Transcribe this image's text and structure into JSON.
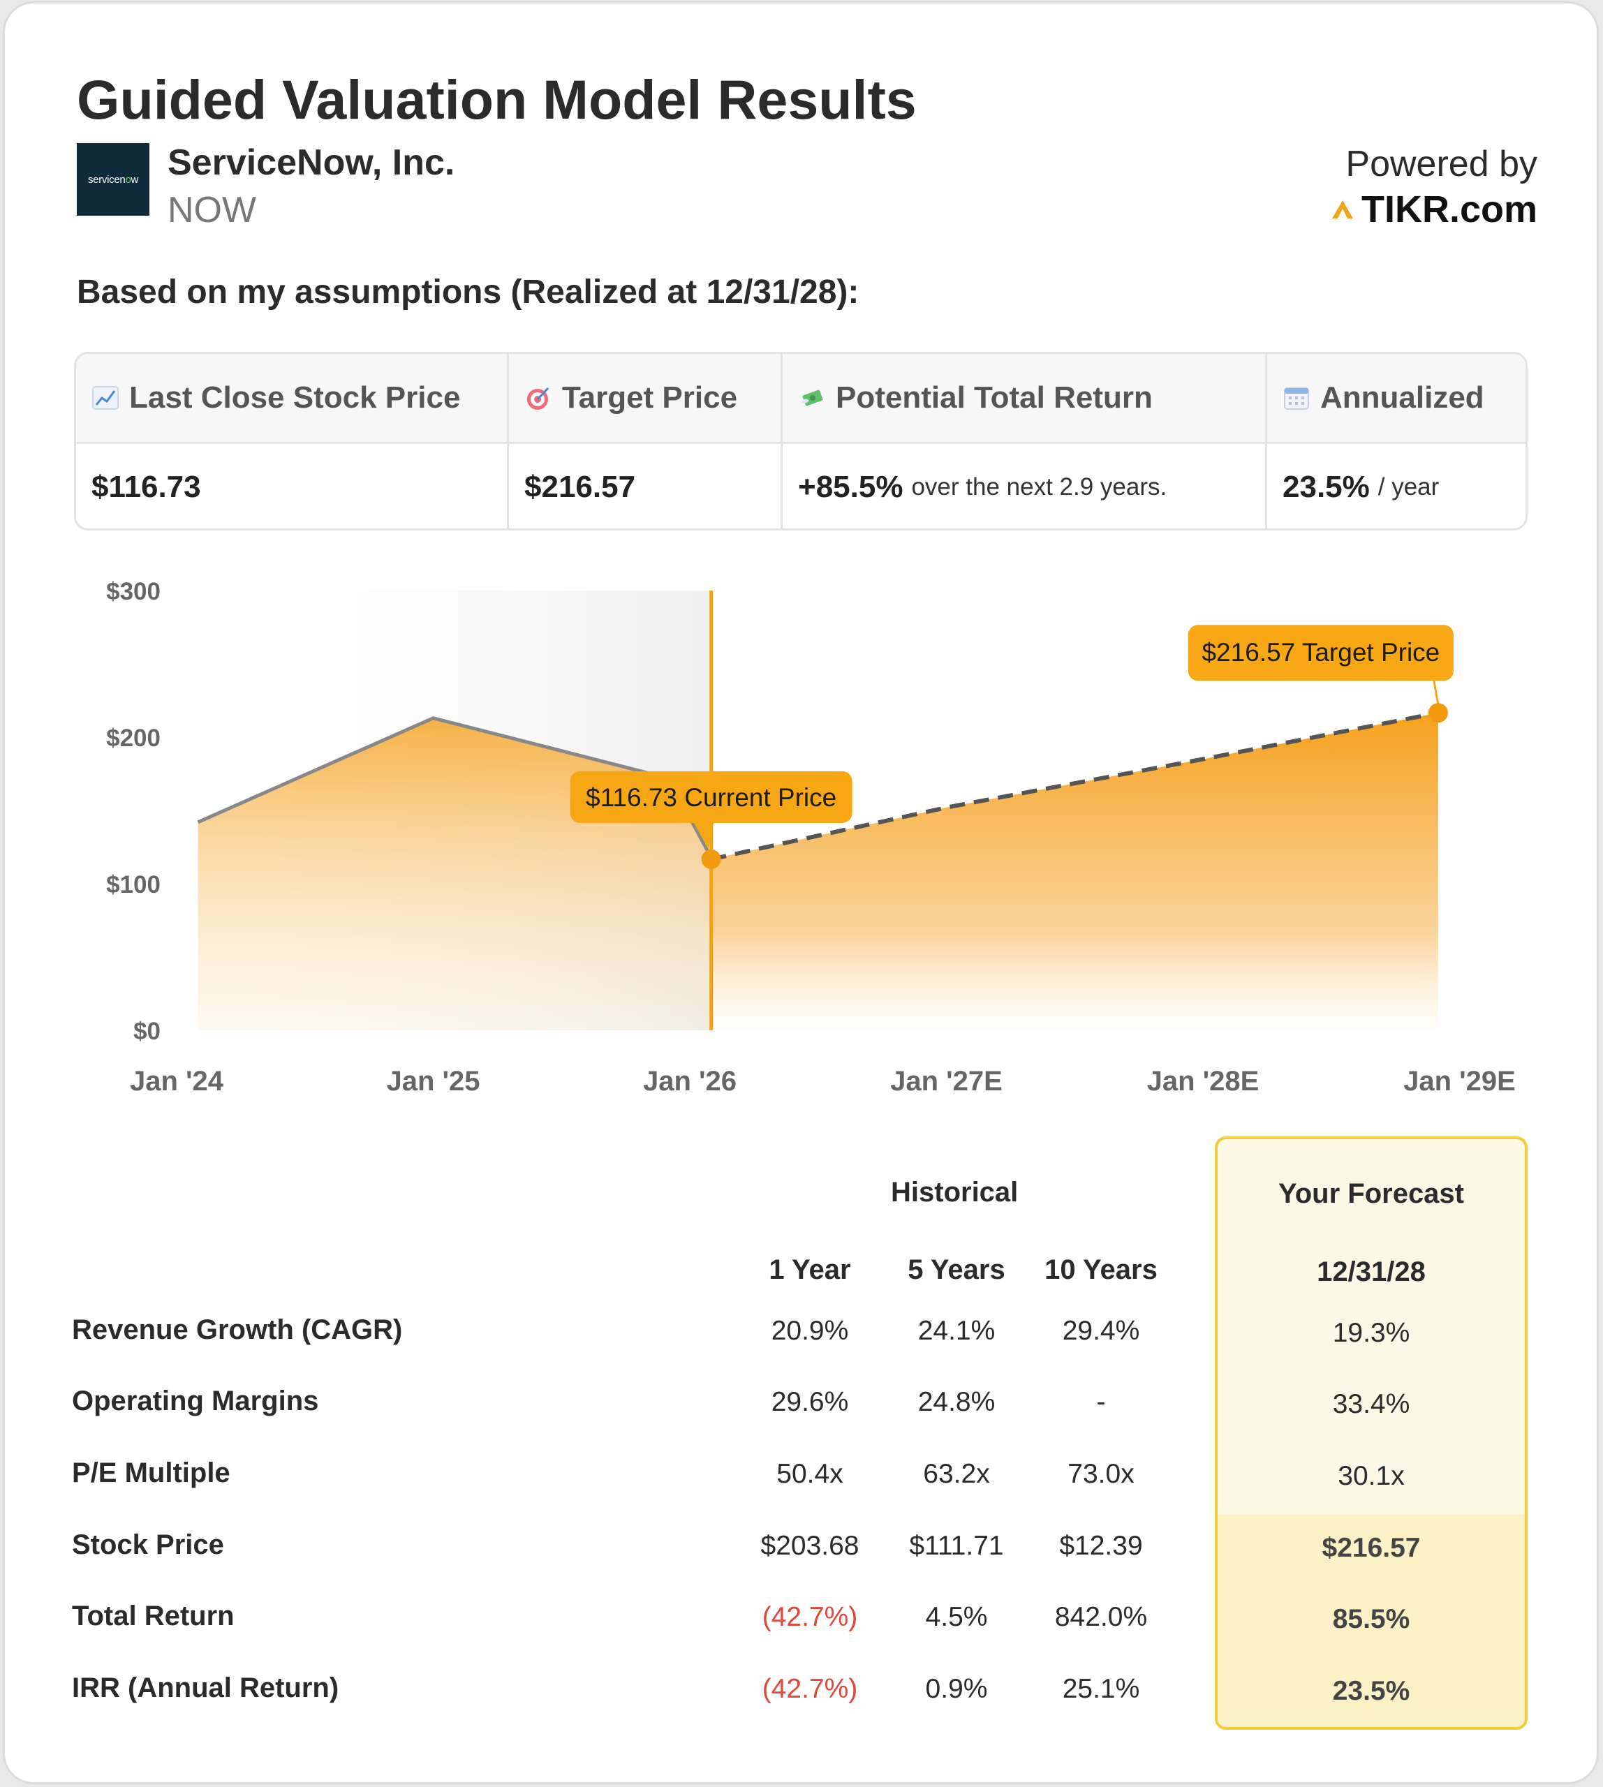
{
  "title": "Guided Valuation Model Results",
  "company": {
    "name": "ServiceNow, Inc.",
    "ticker": "NOW",
    "logo_text": "servicenow",
    "logo_bg": "#0f2a3a",
    "logo_accent": "#7fd36c"
  },
  "powered_by": {
    "label": "Powered by",
    "brand": "TIKR.com",
    "brand_icon": "tikr-logo-icon",
    "brand_color": "#f0a51a"
  },
  "assumptions_heading": "Based on my assumptions (Realized at 12/31/28):",
  "metrics": [
    {
      "icon": "chart-increasing-icon",
      "label": "Last Close Stock Price",
      "value": "$116.73",
      "suffix": ""
    },
    {
      "icon": "target-icon",
      "label": "Target Price",
      "value": "$216.57",
      "suffix": ""
    },
    {
      "icon": "money-with-wings-icon",
      "label": "Potential Total Return",
      "value": "+85.5%",
      "suffix": "over the next 2.9 years."
    },
    {
      "icon": "calendar-icon",
      "label": "Annualized",
      "value": "23.5%",
      "suffix": "/ year"
    }
  ],
  "chart_data": {
    "type": "area",
    "y_ticks": [
      "$300",
      "$200",
      "$100",
      "$0"
    ],
    "ylim": [
      0,
      300
    ],
    "x_ticks": [
      "Jan '24",
      "Jan '25",
      "Jan '26",
      "Jan '27E",
      "Jan '28E",
      "Jan '29E"
    ],
    "accent_color": "#f5a21b",
    "historical_color": "#888888",
    "historical": {
      "x": [
        "2024-02",
        "2025-01",
        "2025-12",
        "2026-02"
      ],
      "y": [
        142,
        213,
        172,
        118
      ]
    },
    "forecast": {
      "x": [
        "2026-02",
        "2027-01",
        "2028-01",
        "2028-12"
      ],
      "y": [
        116.73,
        152,
        185,
        216.57
      ],
      "line_style": "dashed"
    },
    "current_marker": {
      "x": "2026-02",
      "y": 116.73,
      "label": "$116.73 Current Price"
    },
    "target_marker": {
      "x": "2028-12",
      "y": 216.57,
      "label": "$216.57 Target Price"
    },
    "grid": false
  },
  "table": {
    "historical_header": "Historical",
    "forecast_header": "Your Forecast",
    "columns": [
      "1 Year",
      "5 Years",
      "10 Years"
    ],
    "forecast_date": "12/31/28",
    "rows": [
      {
        "label": "Revenue Growth (CAGR)",
        "values": [
          "20.9%",
          "24.1%",
          "29.4%"
        ],
        "forecast": "19.3%"
      },
      {
        "label": "Operating Margins",
        "values": [
          "29.6%",
          "24.8%",
          "-"
        ],
        "forecast": "33.4%"
      },
      {
        "label": "P/E Multiple",
        "values": [
          "50.4x",
          "63.2x",
          "73.0x"
        ],
        "forecast": "30.1x"
      },
      {
        "label": "Stock Price",
        "values": [
          "$203.68",
          "$111.71",
          "$12.39"
        ],
        "forecast": "$216.57"
      },
      {
        "label": "Total Return",
        "values": [
          "(42.7%)",
          "4.5%",
          "842.0%"
        ],
        "forecast": "85.5%"
      },
      {
        "label": "IRR (Annual Return)",
        "values": [
          "(42.7%)",
          "0.9%",
          "25.1%"
        ],
        "forecast": "23.5%"
      }
    ],
    "negative_color": "#e0483a",
    "forecast_highlight": "#fbf0c6"
  }
}
